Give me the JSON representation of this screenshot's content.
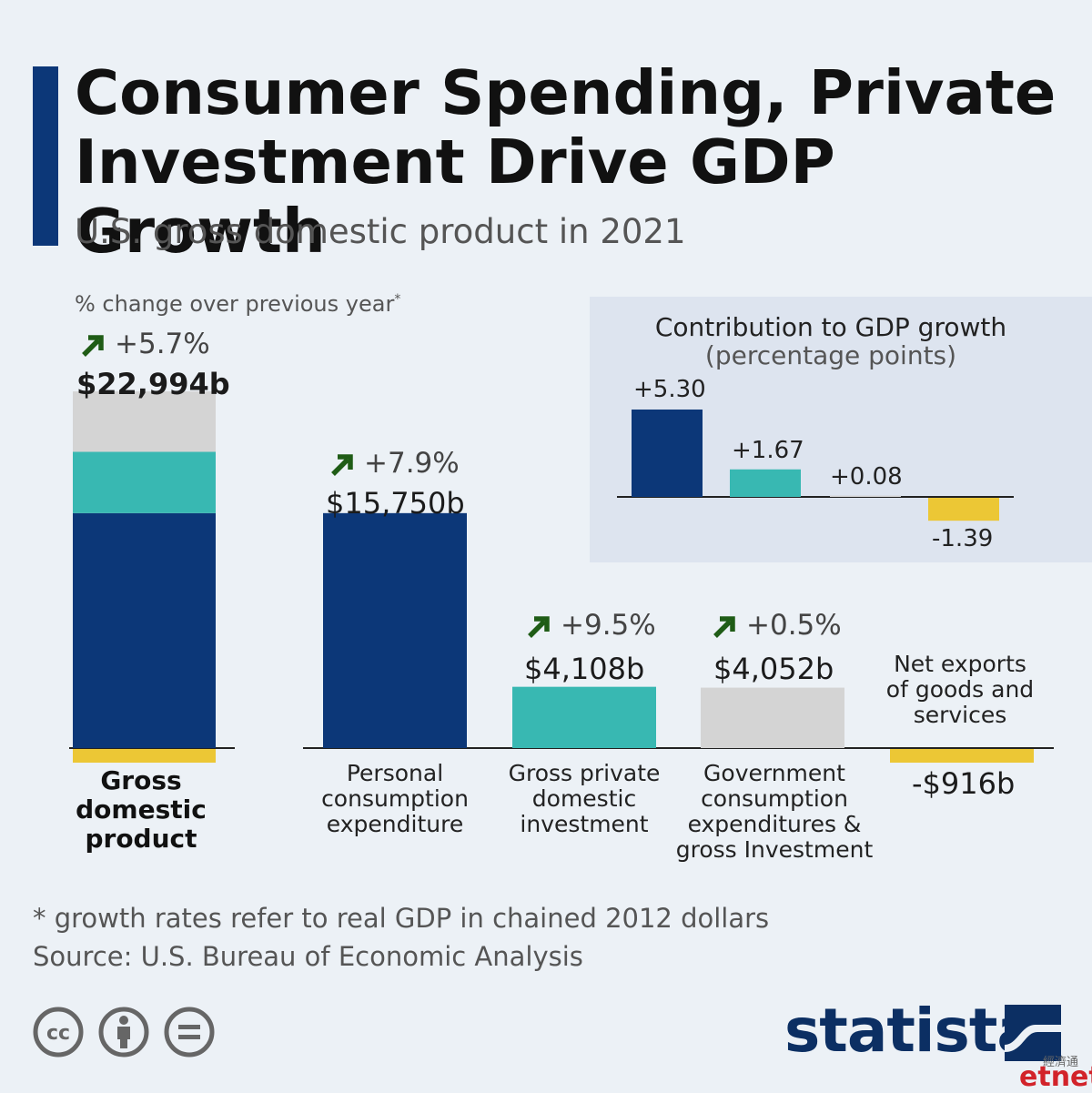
{
  "header": {
    "title": "Consumer Spending, Private Investment Drive GDP Growth",
    "subtitle": "U.S. gross domestic product in 2021",
    "note": "% change over previous year",
    "note_mark": "*"
  },
  "colors": {
    "consumption": "#0c3778",
    "investment": "#38b8b2",
    "government": "#d4d4d4",
    "net_exports": "#ecc735",
    "growth_arrow": "#1f5c16",
    "accent": "#0c3778"
  },
  "chart_data": [
    {
      "type": "bar",
      "unit": "$ billions",
      "categories": [
        "Gross domestic product",
        "Personal consumption expenditure",
        "Gross private domestic investment",
        "Government consumption expenditures & gross Investment",
        "Net exports of goods and services"
      ],
      "values": [
        22994,
        15750,
        4108,
        4052,
        -916
      ],
      "value_labels": [
        "$22,994b",
        "$15,750b",
        "$4,108b",
        "$4,052b",
        "-$916b"
      ],
      "growth_labels": [
        "+5.7%",
        "+7.9%",
        "+9.5%",
        "+0.5%",
        null
      ],
      "gdp_stack": [
        {
          "component": "Personal consumption expenditure",
          "value": 15750,
          "color": "#0c3778"
        },
        {
          "component": "Gross private domestic investment",
          "value": 4108,
          "color": "#38b8b2"
        },
        {
          "component": "Government consumption expenditures & gross Investment",
          "value": 4052,
          "color": "#d4d4d4"
        },
        {
          "component": "Net exports of goods and services",
          "value": -916,
          "color": "#ecc735"
        }
      ]
    },
    {
      "type": "bar",
      "title": "Contribution to GDP growth",
      "subtitle": "(percentage points)",
      "values": [
        5.3,
        1.67,
        0.08,
        -1.39
      ],
      "value_labels": [
        "+5.30",
        "+1.67",
        "+0.08",
        "-1.39"
      ],
      "colors": [
        "#0c3778",
        "#38b8b2",
        "#d4d4d4",
        "#ecc735"
      ]
    }
  ],
  "labels": {
    "gdp": "Gross domestic product",
    "consumption": "Personal consumption expenditure",
    "investment": "Gross private domestic investment",
    "government": "Government consumption expenditures & gross Investment",
    "net_exports": "Net exports of goods and services"
  },
  "footer": {
    "footnote": "* growth rates refer to real GDP in chained 2012 dollars",
    "source": "Source: U.S. Bureau of Economic Analysis",
    "license_icons": [
      "cc-icon",
      "attribution-icon",
      "no-derivatives-icon"
    ],
    "brand": "statista",
    "watermark_cn": "經濟通",
    "watermark_en": "etnet"
  }
}
